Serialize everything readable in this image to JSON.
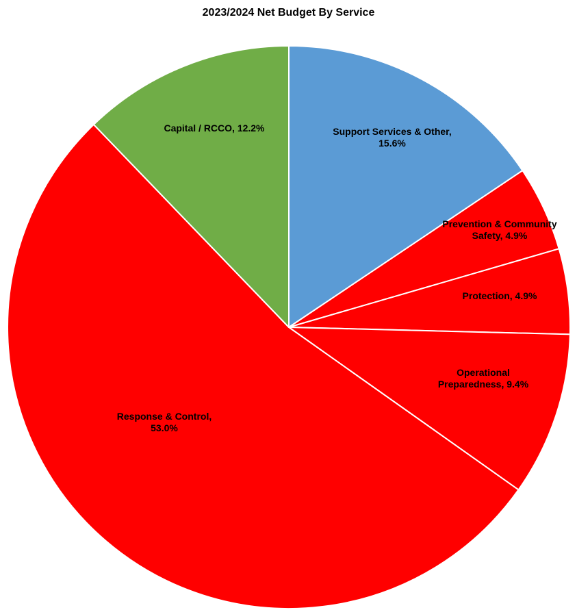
{
  "chart_data": {
    "type": "pie",
    "title": "2023/2024 Net Budget By Service",
    "start_angle_deg": 0,
    "direction": "clockwise",
    "slice_border_color": "#ffffff",
    "slices": [
      {
        "name": "Support Services & Other",
        "value": 15.6,
        "label_lines": [
          "Support Services & Other,",
          "15.6%"
        ],
        "color": "#5b9bd5"
      },
      {
        "name": "Prevention & Community Safety",
        "value": 4.9,
        "label_lines": [
          "Prevention & Community",
          "Safety, 4.9%"
        ],
        "color": "#ff0000"
      },
      {
        "name": "Protection",
        "value": 4.9,
        "label_lines": [
          "Protection, 4.9%"
        ],
        "color": "#ff0000"
      },
      {
        "name": "Operational Preparedness",
        "value": 9.4,
        "label_lines": [
          "Operational",
          "Preparedness, 9.4%"
        ],
        "color": "#ff0000"
      },
      {
        "name": "Response & Control",
        "value": 53.0,
        "label_lines": [
          "Response & Control,",
          "53.0%"
        ],
        "color": "#ff0000"
      },
      {
        "name": "Capital / RCCO",
        "value": 12.2,
        "label_lines": [
          "Capital / RCCO, 12.2%"
        ],
        "color": "#70ad47"
      }
    ]
  }
}
